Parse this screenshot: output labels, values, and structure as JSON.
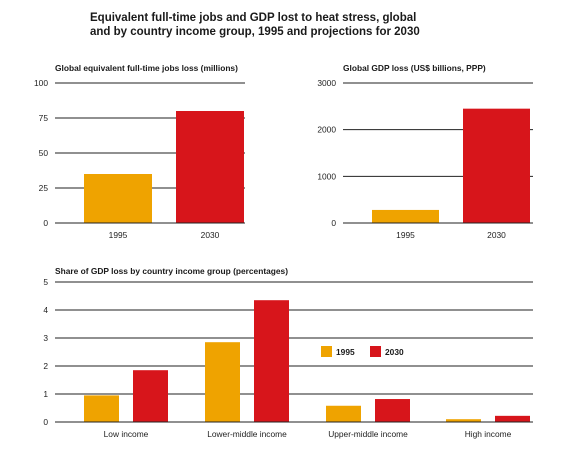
{
  "title_line1": "Equivalent full-time jobs and GDP lost to heat stress, global",
  "title_line2": "and by country income group, 1995 and projections for 2030",
  "colors": {
    "y1995": "#EFA300",
    "y2030": "#D7151B",
    "grid": "#222222"
  },
  "chart_data": [
    {
      "type": "bar",
      "title": "Global equivalent full-time jobs loss (millions)",
      "categories": [
        "1995",
        "2030"
      ],
      "series": [
        {
          "values": [
            35,
            80
          ]
        }
      ],
      "ylim": [
        0,
        100
      ],
      "yticks": [
        "0",
        "25",
        "50",
        "75",
        "100"
      ],
      "ytick_values": [
        0,
        25,
        50,
        75,
        100
      ],
      "grid": true
    },
    {
      "type": "bar",
      "title": "Global GDP loss (US$ billions, PPP)",
      "categories": [
        "1995",
        "2030"
      ],
      "series": [
        {
          "values": [
            280,
            2450
          ]
        }
      ],
      "ylim": [
        0,
        3000
      ],
      "yticks": [
        "0",
        "1000",
        "2000",
        "3000"
      ],
      "ytick_values": [
        0,
        1000,
        2000,
        3000
      ],
      "grid": true
    },
    {
      "type": "bar",
      "title": "Share of GDP loss by country income group (percentages)",
      "categories": [
        "Low income",
        "Lower-middle income",
        "Upper-middle income",
        "High income"
      ],
      "series": [
        {
          "name": "1995",
          "values": [
            0.95,
            2.85,
            0.58,
            0.1
          ]
        },
        {
          "name": "2030",
          "values": [
            1.85,
            4.35,
            0.82,
            0.22
          ]
        }
      ],
      "ylim": [
        0,
        5
      ],
      "yticks": [
        "0",
        "1",
        "2",
        "3",
        "4",
        "5"
      ],
      "ytick_values": [
        0,
        1,
        2,
        3,
        4,
        5
      ],
      "grid": true,
      "legend": "center-right"
    }
  ]
}
